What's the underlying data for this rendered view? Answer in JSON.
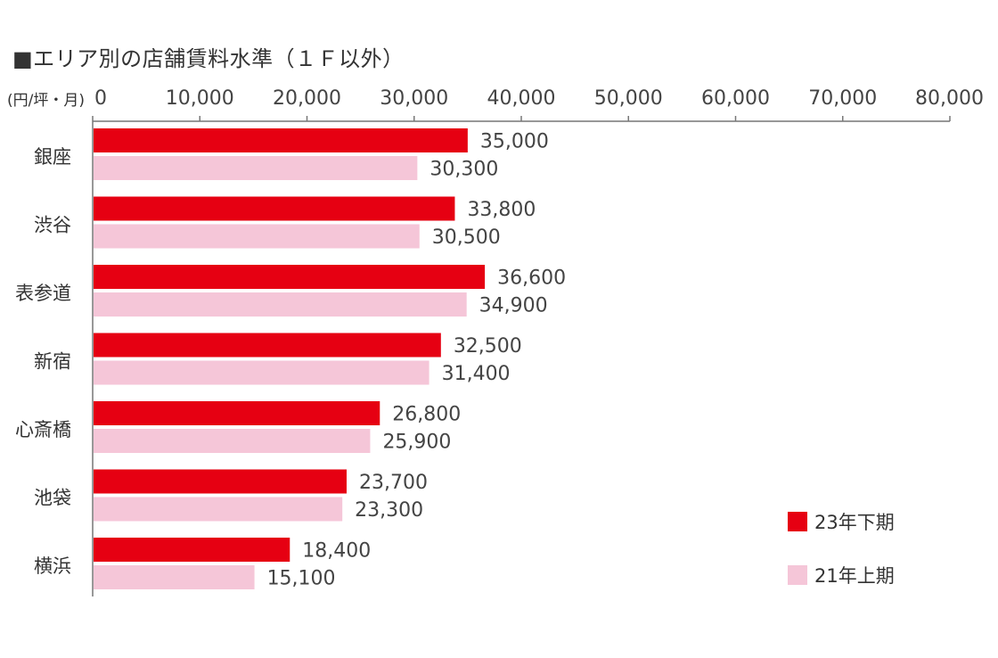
{
  "chart_data": {
    "type": "bar",
    "orientation": "horizontal",
    "title": "■エリア別の店舗賃料水準（１Ｆ以外）",
    "unit_label": "(円/坪・月)",
    "categories": [
      "銀座",
      "渋谷",
      "表参道",
      "新宿",
      "心斎橋",
      "池袋",
      "横浜"
    ],
    "series": [
      {
        "name": "23年下期",
        "color": "#e60012",
        "values": [
          35000,
          33800,
          36600,
          32500,
          26800,
          23700,
          18400
        ],
        "labels": [
          "35,000",
          "33,800",
          "36,600",
          "32,500",
          "26,800",
          "23,700",
          "18,400"
        ]
      },
      {
        "name": "21年上期",
        "color": "#f5c6d8",
        "values": [
          30300,
          30500,
          34900,
          31400,
          25900,
          23300,
          15100
        ],
        "labels": [
          "30,300",
          "30,500",
          "34,900",
          "31,400",
          "25,900",
          "23,300",
          "15,100"
        ]
      }
    ],
    "xlim": [
      0,
      80000
    ],
    "xticks": [
      0,
      10000,
      20000,
      30000,
      40000,
      50000,
      60000,
      70000,
      80000
    ],
    "xtick_labels": [
      "0",
      "10,000",
      "20,000",
      "30,000",
      "40,000",
      "50,000",
      "60,000",
      "70,000",
      "80,000"
    ],
    "axis_position": "top",
    "grid": false,
    "legend_position": "bottom-right"
  }
}
